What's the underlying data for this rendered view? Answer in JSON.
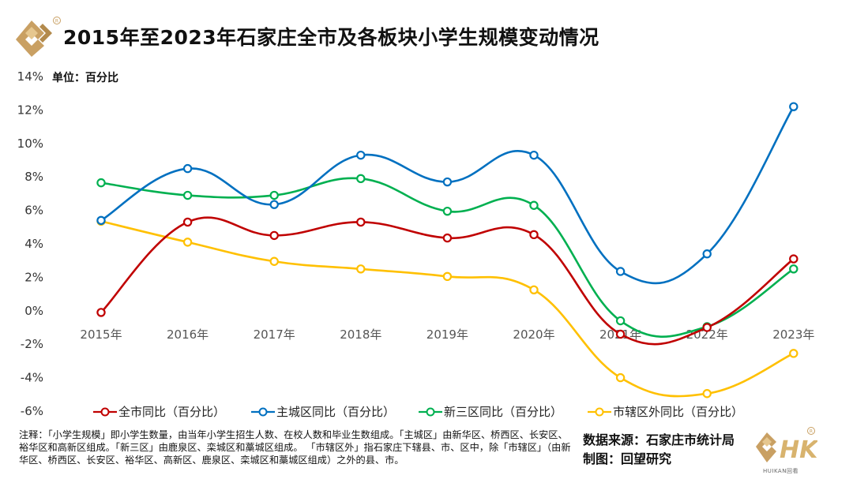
{
  "header": {
    "title": "2015年至2023年石家庄全市及各板块小学生规模变动情况",
    "unit_label": "单位：百分比"
  },
  "chart_data": {
    "type": "line",
    "title": "2015年至2023年石家庄全市及各板块小学生规模变动情况",
    "xlabel": "",
    "ylabel": "单位：百分比",
    "categories": [
      "2015年",
      "2016年",
      "2017年",
      "2018年",
      "2019年",
      "2020年",
      "2021年",
      "2022年",
      "2023年"
    ],
    "ylim": [
      -6,
      14
    ],
    "yticks": [
      -6,
      -4,
      -2,
      0,
      2,
      4,
      6,
      8,
      10,
      12,
      14
    ],
    "ytick_labels": [
      "-6%",
      "-4%",
      "-2%",
      "0%",
      "2%",
      "4%",
      "6%",
      "8%",
      "10%",
      "12%",
      "14%"
    ],
    "grid": false,
    "legend_position": "bottom",
    "series": [
      {
        "name": "全市同比（百分比）",
        "color": "#C00000",
        "values": [
          -0.1,
          5.3,
          4.5,
          5.3,
          4.35,
          4.55,
          -1.4,
          -1.0,
          3.1
        ]
      },
      {
        "name": "主城区同比（百分比）",
        "color": "#0070C0",
        "values": [
          5.4,
          8.5,
          6.35,
          9.3,
          7.7,
          9.3,
          2.35,
          3.4,
          12.2
        ]
      },
      {
        "name": "新三区同比（百分比）",
        "color": "#00B050",
        "values": [
          7.65,
          6.9,
          6.9,
          7.9,
          5.95,
          6.3,
          -0.6,
          -0.95,
          2.5
        ]
      },
      {
        "name": "市辖区外同比（百分比）",
        "color": "#FFC000",
        "values": [
          5.35,
          4.1,
          2.95,
          2.5,
          2.05,
          1.25,
          -4.0,
          -4.95,
          -2.55
        ]
      }
    ]
  },
  "footer": {
    "note": "注释：「小学生规模」即小学生数量，由当年小学生招生人数、在校人数和毕业生数组成。「主城区」由新华区、桥西区、长安区、裕华区和高新区组成。「新三区」由鹿泉区、栾城区和藁城区组成。 「市辖区外」指石家庄下辖县、市、区中，除「市辖区」（由新华区、桥西区、长安区、裕华区、高新区、鹿泉区、栾城区和藁城区组成）之外的县、市。",
    "source": "数据来源：石家庄市统计局",
    "producer": "制图：回望研究",
    "brand_name": "HUIKAN回看",
    "brand_color": "#C9A063"
  }
}
